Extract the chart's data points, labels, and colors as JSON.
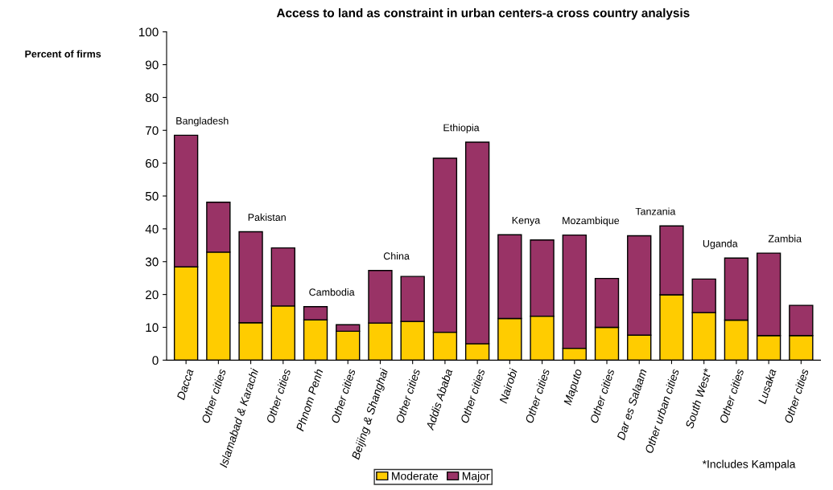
{
  "chart_data": {
    "type": "bar",
    "stacked": true,
    "title": "Access to land as constraint in urban centers-a cross country analysis",
    "ylabel": "Percent of firms",
    "categories": [
      "Dacca",
      "Other cities",
      "Islamabad & Karachi",
      "Other cities",
      "Phnom Penh",
      "Other cities",
      "Beijing & Shanghai",
      "Other cities",
      "Addis Ababa",
      "Other cities",
      "Nairobi",
      "Other cities",
      "Maputo",
      "Other cities",
      "Dar es Salaam",
      "Other urban cities",
      "South West*",
      "Other cities",
      "Lusaka",
      "Other cities"
    ],
    "series": [
      {
        "name": "Moderate",
        "color": "#ffcc00",
        "values": [
          28.4,
          32.9,
          11.4,
          16.5,
          12.3,
          8.8,
          11.3,
          11.8,
          8.5,
          5.0,
          12.7,
          13.4,
          3.6,
          10.0,
          7.6,
          19.9,
          14.5,
          12.2,
          7.5,
          7.5
        ]
      },
      {
        "name": "Major",
        "color": "#993366",
        "values": [
          40.1,
          15.2,
          27.7,
          17.7,
          4.0,
          2.0,
          16.0,
          13.7,
          53.0,
          61.4,
          25.5,
          23.2,
          34.5,
          14.9,
          30.3,
          21.0,
          10.2,
          18.9,
          25.1,
          9.2
        ]
      }
    ],
    "ylim": [
      0,
      100
    ],
    "yticks": [
      0,
      10,
      20,
      30,
      40,
      50,
      60,
      70,
      80,
      90,
      100
    ],
    "grid": false,
    "legend": "bottom",
    "annotations": [
      "Bangladesh",
      "Pakistan",
      "Cambodia",
      "China",
      "Ethiopia",
      "Kenya",
      "Mozambique",
      "Tanzania",
      "Uganda",
      "Zambia",
      "*Includes Kampala"
    ]
  }
}
